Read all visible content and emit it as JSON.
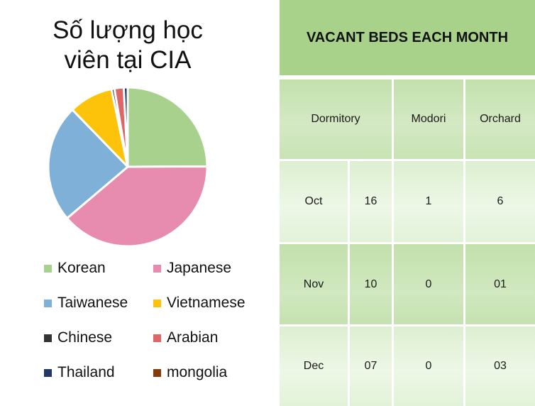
{
  "chart_data": {
    "type": "pie",
    "title_lines": [
      "Số lượng học",
      "viên tại CIA"
    ],
    "slices": [
      {
        "name": "Korean",
        "value": 25,
        "color": "#a9d18e"
      },
      {
        "name": "Japanese",
        "value": 39,
        "color": "#e88caf"
      },
      {
        "name": "Taiwanese",
        "value": 24,
        "color": "#7eb0d8"
      },
      {
        "name": "Vietnamese",
        "value": 9,
        "color": "#fcc30a"
      },
      {
        "name": "Chinese",
        "value": 0.6,
        "color": "#333333"
      },
      {
        "name": "Arabian",
        "value": 1.9,
        "color": "#dd6666"
      },
      {
        "name": "Thailand",
        "value": 0.8,
        "color": "#1f3864"
      },
      {
        "name": "mongolia",
        "value": 0,
        "color": "#843c0c"
      }
    ],
    "legend_placement": "bottom"
  },
  "table": {
    "title": "VACANT BEDS EACH MONTH",
    "columns": [
      "Dormitory",
      "Modori",
      "Orchard"
    ],
    "rows": [
      {
        "month": "Oct",
        "dormitory": "16",
        "modori": "1",
        "orchard": "6"
      },
      {
        "month": "Nov",
        "dormitory": "10",
        "modori": "0",
        "orchard": "01"
      },
      {
        "month": "Dec",
        "dormitory": "07",
        "modori": "0",
        "orchard": "03"
      }
    ],
    "colors": {
      "header": "#a8d28a",
      "grid": "#ffffff"
    }
  }
}
